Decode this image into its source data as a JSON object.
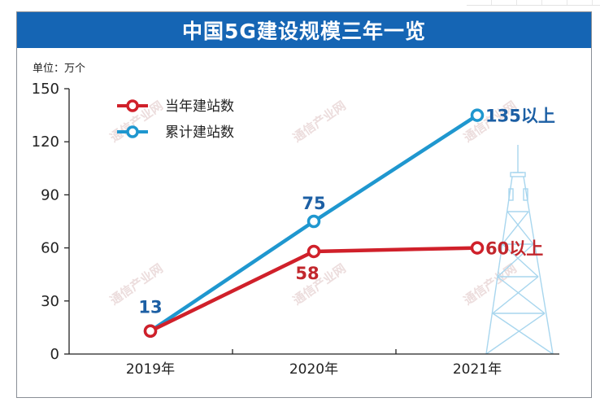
{
  "banner": {
    "title": "中国5G建设规模三年一览"
  },
  "chart_data": {
    "type": "line",
    "title": "中国5G建设规模三年一览",
    "ylabel": "单位：万个",
    "categories": [
      "2019年",
      "2020年",
      "2021年"
    ],
    "yticks": [
      "0",
      "30",
      "60",
      "90",
      "120",
      "150"
    ],
    "ylim": [
      0,
      150
    ],
    "series": [
      {
        "name": "当年建站数",
        "color": "#d0202a",
        "values": [
          13,
          58,
          60
        ]
      },
      {
        "name": "累计建站数",
        "color": "#1f97cf",
        "values": [
          13,
          75,
          135
        ]
      }
    ],
    "annotations": [
      {
        "text": "13",
        "series": 1,
        "index": 0,
        "color": "#1c5fa4"
      },
      {
        "text": "75",
        "series": 1,
        "index": 1,
        "color": "#1c5fa4"
      },
      {
        "text": "135以上",
        "series": 1,
        "index": 2,
        "color": "#1c5fa4"
      },
      {
        "text": "58",
        "series": 0,
        "index": 1,
        "color": "#c2272d"
      },
      {
        "text": "60以上",
        "series": 0,
        "index": 2,
        "color": "#c2272d"
      }
    ],
    "legend_position": "top-left"
  },
  "watermark": "通信产业网"
}
